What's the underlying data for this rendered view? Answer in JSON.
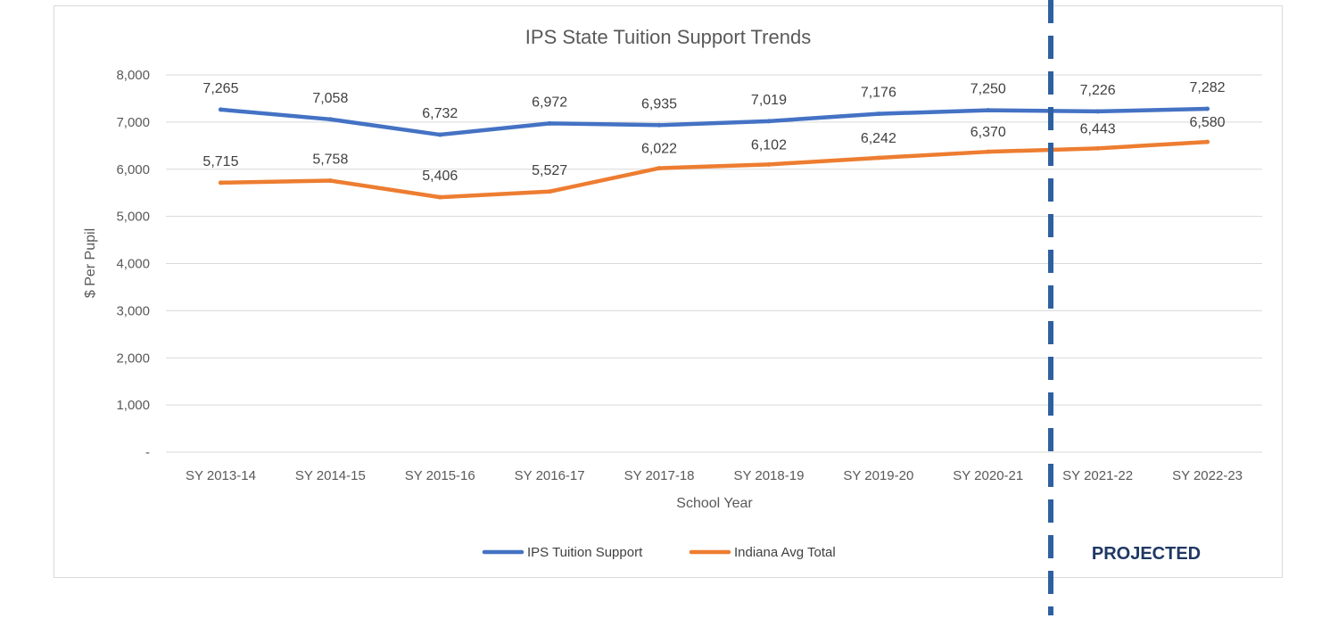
{
  "chart_data": {
    "type": "line",
    "title": "IPS State Tuition Support Trends",
    "xlabel": "School Year",
    "ylabel": "$ Per Pupil",
    "ylim": [
      0,
      8000
    ],
    "yticks": [
      "-",
      "1,000",
      "2,000",
      "3,000",
      "4,000",
      "5,000",
      "6,000",
      "7,000",
      "8,000"
    ],
    "grid": true,
    "legend_position": "bottom",
    "categories": [
      "SY 2013-14",
      "SY 2014-15",
      "SY 2015-16",
      "SY 2016-17",
      "SY 2017-18",
      "SY 2018-19",
      "SY 2019-20",
      "SY 2020-21",
      "SY 2021-22",
      "SY 2022-23"
    ],
    "series": [
      {
        "name": "IPS Tuition Support",
        "color": "#4472c4",
        "values": [
          7265,
          7058,
          6732,
          6972,
          6935,
          7019,
          7176,
          7250,
          7226,
          7282
        ],
        "labels": [
          "7,265",
          "7,058",
          "6,732",
          "6,972",
          "6,935",
          "7,019",
          "7,176",
          "7,250",
          "7,226",
          "7,282"
        ]
      },
      {
        "name": "Indiana Avg Total",
        "color": "#ed7d31",
        "values": [
          5715,
          5758,
          5406,
          5527,
          6022,
          6102,
          6242,
          6370,
          6443,
          6580
        ],
        "labels": [
          "5,715",
          "5,758",
          "5,406",
          "5,527",
          "6,022",
          "6,102",
          "6,242",
          "6,370",
          "6,443",
          "6,580"
        ]
      }
    ],
    "annotation": {
      "text": "PROJECTED",
      "divider_between": [
        "SY 2020-21",
        "SY 2021-22"
      ],
      "color": "#2e5fa1",
      "text_color": "#1f3864"
    }
  }
}
